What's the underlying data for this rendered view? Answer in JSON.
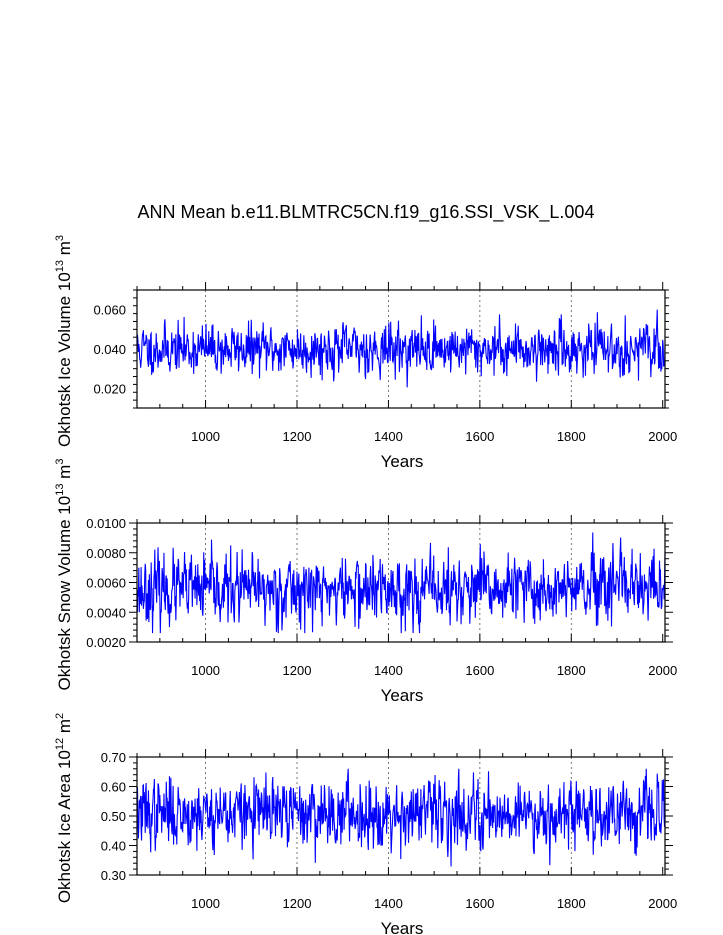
{
  "chart_data": {
    "type": "line",
    "title": "ANN Mean b.e11.BLMTRC5CN.f19_g16.SSI_VSK_L.004",
    "line_color": "#0000ff",
    "panels": [
      {
        "id": "ice-volume",
        "ylabel": "Okhotsk Ice Volume 10",
        "ylabel_exp": "13",
        "ylabel_unit": "m",
        "ylabel_unit_exp": "3",
        "xlabel": "Years",
        "xlim": [
          850,
          2005
        ],
        "ylim": [
          0.01,
          0.07
        ],
        "xticks": [
          1000,
          1200,
          1400,
          1600,
          1800,
          2000
        ],
        "xtick_labels": [
          "1000",
          "1200",
          "1400",
          "1600",
          "1800",
          "2000"
        ],
        "yticks": [
          0.02,
          0.04,
          0.06
        ],
        "ytick_labels": [
          "0.020",
          "0.040",
          "0.060"
        ],
        "gridlines_x": [
          1000,
          1200,
          1400,
          1600,
          1800
        ],
        "series": {
          "x_start": 850,
          "x_end": 2005,
          "mean": 0.04,
          "std": 0.006,
          "min": 0.019,
          "max": 0.06,
          "seed": 11
        }
      },
      {
        "id": "snow-volume",
        "ylabel": "Okhotsk Snow Volume 10",
        "ylabel_exp": "13",
        "ylabel_unit": "m",
        "ylabel_unit_exp": "3",
        "xlabel": "Years",
        "xlim": [
          850,
          2005
        ],
        "ylim": [
          0.002,
          0.01
        ],
        "xticks": [
          1000,
          1200,
          1400,
          1600,
          1800,
          2000
        ],
        "xtick_labels": [
          "1000",
          "1200",
          "1400",
          "1600",
          "1800",
          "2000"
        ],
        "yticks": [
          0.002,
          0.004,
          0.006,
          0.008,
          0.01
        ],
        "ytick_labels": [
          "0.0020",
          "0.0040",
          "0.0060",
          "0.0080",
          "0.0100"
        ],
        "gridlines_x": [
          1000,
          1200,
          1400,
          1600,
          1800
        ],
        "series": {
          "x_start": 850,
          "x_end": 2005,
          "mean": 0.0055,
          "std": 0.0011,
          "min": 0.0026,
          "max": 0.0096,
          "seed": 23
        }
      },
      {
        "id": "ice-area",
        "ylabel": "Okhotsk Ice Area 10",
        "ylabel_exp": "12",
        "ylabel_unit": "m",
        "ylabel_unit_exp": "2",
        "xlabel": "Years",
        "xlim": [
          850,
          2005
        ],
        "ylim": [
          0.3,
          0.7
        ],
        "xticks": [
          1000,
          1200,
          1400,
          1600,
          1800,
          2000
        ],
        "xtick_labels": [
          "1000",
          "1200",
          "1400",
          "1600",
          "1800",
          "2000"
        ],
        "yticks": [
          0.3,
          0.4,
          0.5,
          0.6,
          0.7
        ],
        "ytick_labels": [
          "0.30",
          "0.40",
          "0.50",
          "0.60",
          "0.70"
        ],
        "gridlines_x": [
          1000,
          1200,
          1400,
          1600,
          1800
        ],
        "series": {
          "x_start": 850,
          "x_end": 2005,
          "mean": 0.51,
          "std": 0.055,
          "min": 0.31,
          "max": 0.66,
          "seed": 37
        }
      }
    ]
  }
}
